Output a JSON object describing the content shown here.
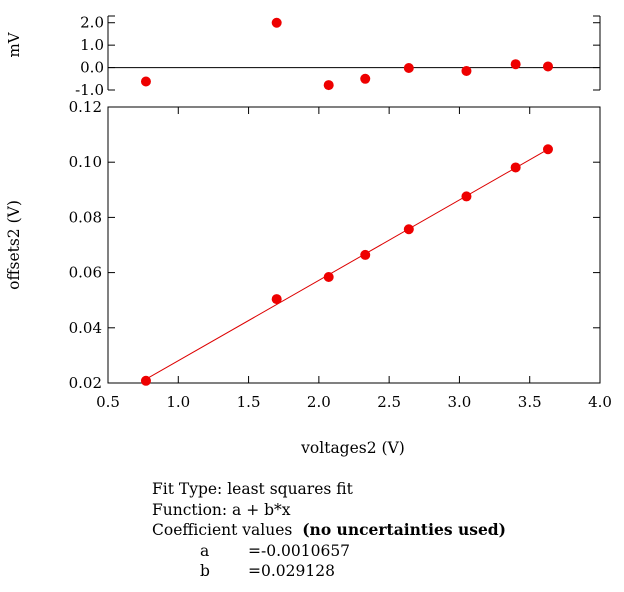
{
  "chart_data": [
    {
      "type": "scatter",
      "panel": "residuals",
      "ylabel": "mV",
      "ylim": [
        -1.0,
        2.3
      ],
      "y_ticks": [
        -1.0,
        0.0,
        1.0,
        2.0
      ],
      "y_tick_labels": [
        "-1.0",
        "0.0",
        "1.0",
        "2.0"
      ],
      "zero_line": true,
      "x": [
        0.77,
        1.7,
        2.07,
        2.33,
        2.64,
        3.05,
        3.4,
        3.63
      ],
      "y": [
        -0.62,
        2.0,
        -0.78,
        -0.5,
        -0.02,
        -0.15,
        0.15,
        0.05
      ]
    },
    {
      "type": "scatter",
      "panel": "main",
      "xlabel": "voltages2 (V)",
      "ylabel": "offsets2 (V)",
      "xlim": [
        0.5,
        4.0
      ],
      "ylim": [
        0.02,
        0.12
      ],
      "x_ticks": [
        0.5,
        1.0,
        1.5,
        2.0,
        2.5,
        3.0,
        3.5,
        4.0
      ],
      "x_tick_labels": [
        "0.5",
        "1.0",
        "1.5",
        "2.0",
        "2.5",
        "3.0",
        "3.5",
        "4.0"
      ],
      "y_ticks": [
        0.02,
        0.04,
        0.06,
        0.08,
        0.1,
        0.12
      ],
      "y_tick_labels": [
        "0.02",
        "0.04",
        "0.06",
        "0.08",
        "0.10",
        "0.12"
      ],
      "x": [
        0.77,
        1.7,
        2.07,
        2.33,
        2.64,
        3.05,
        3.4,
        3.63
      ],
      "y": [
        0.0208,
        0.0504,
        0.0584,
        0.0664,
        0.0757,
        0.0876,
        0.0981,
        0.1047
      ],
      "fit": {
        "a": -0.0010657,
        "b": 0.029128,
        "x_range": [
          0.77,
          3.63
        ]
      }
    }
  ],
  "colors": {
    "points": "#ee0000",
    "fit_line": "#dd0000",
    "axes": "#000000"
  },
  "fit_info": {
    "fit_type": "Fit Type: least squares fit",
    "function": "Function: a + b*x",
    "coef_heading": "Coefficient values",
    "coef_note": "(no uncertainties used)",
    "coefficients": [
      {
        "name": "a",
        "value": "=-0.0010657"
      },
      {
        "name": "b",
        "value": "=0.029128"
      }
    ]
  }
}
